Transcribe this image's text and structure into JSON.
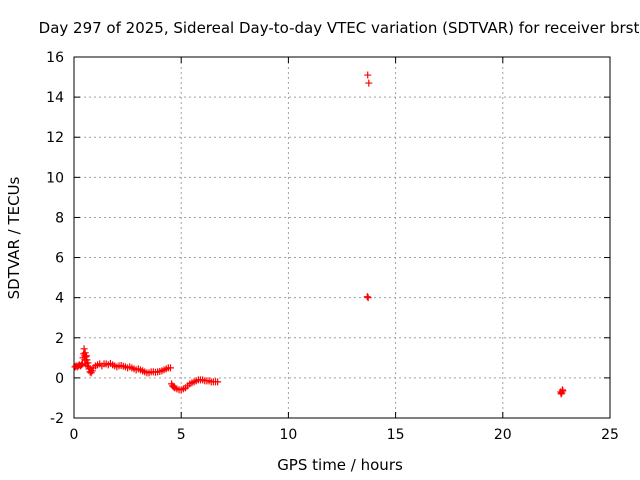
{
  "chart_data": {
    "type": "scatter",
    "title": "Day 297 of 2025, Sidereal Day-to-day VTEC variation (SDTVAR) for receiver brst",
    "xlabel": "GPS time / hours",
    "ylabel": "SDTVAR / TECUs",
    "xlim": [
      0,
      25
    ],
    "ylim": [
      -2,
      16
    ],
    "x_ticks": [
      0,
      5,
      10,
      15,
      20,
      25
    ],
    "y_ticks": [
      -2,
      0,
      2,
      4,
      6,
      8,
      10,
      12,
      14,
      16
    ],
    "x_tick_labels": [
      "0",
      "5",
      "10",
      "15",
      "20",
      "25"
    ],
    "y_tick_labels": [
      "-2",
      "0",
      "2",
      "4",
      "6",
      "8",
      "10",
      "12",
      "14",
      "16"
    ],
    "grid": true,
    "marker": "+",
    "series": [
      {
        "name": "SDTVAR",
        "color": "#ff0000",
        "x": [
          0.05,
          0.1,
          0.15,
          0.2,
          0.25,
          0.3,
          0.35,
          0.4,
          0.42,
          0.45,
          0.47,
          0.5,
          0.5,
          0.52,
          0.55,
          0.55,
          0.58,
          0.6,
          0.62,
          0.65,
          0.68,
          0.7,
          0.75,
          0.8,
          0.85,
          0.9,
          1.0,
          1.1,
          1.2,
          1.3,
          1.4,
          1.5,
          1.6,
          1.7,
          1.8,
          1.9,
          2.0,
          2.1,
          2.2,
          2.3,
          2.4,
          2.5,
          2.6,
          2.7,
          2.8,
          2.9,
          3.0,
          3.1,
          3.2,
          3.3,
          3.4,
          3.5,
          3.6,
          3.7,
          3.8,
          3.9,
          4.0,
          4.1,
          4.2,
          4.3,
          4.4,
          4.5,
          4.55,
          4.6,
          4.65,
          4.7,
          4.8,
          4.9,
          5.0,
          5.1,
          5.2,
          5.3,
          5.4,
          5.5,
          5.6,
          5.7,
          5.8,
          5.9,
          6.0,
          6.1,
          6.2,
          6.3,
          6.4,
          6.5,
          6.6,
          6.7,
          13.7,
          13.75,
          13.68,
          13.72,
          22.7,
          22.75,
          22.8,
          22.72,
          22.78
        ],
        "y": [
          0.55,
          0.6,
          0.55,
          0.6,
          0.65,
          0.6,
          0.65,
          0.7,
          1.0,
          1.2,
          1.45,
          1.1,
          0.9,
          1.25,
          1.05,
          0.7,
          1.1,
          0.9,
          0.6,
          0.75,
          0.55,
          0.45,
          0.3,
          0.25,
          0.35,
          0.5,
          0.6,
          0.65,
          0.7,
          0.6,
          0.7,
          0.7,
          0.65,
          0.72,
          0.65,
          0.6,
          0.55,
          0.6,
          0.62,
          0.58,
          0.55,
          0.5,
          0.55,
          0.5,
          0.45,
          0.4,
          0.45,
          0.4,
          0.35,
          0.3,
          0.25,
          0.25,
          0.3,
          0.3,
          0.28,
          0.3,
          0.32,
          0.35,
          0.4,
          0.45,
          0.5,
          0.5,
          -0.3,
          -0.4,
          -0.45,
          -0.5,
          -0.55,
          -0.6,
          -0.6,
          -0.55,
          -0.5,
          -0.4,
          -0.3,
          -0.25,
          -0.2,
          -0.15,
          -0.1,
          -0.1,
          -0.1,
          -0.15,
          -0.15,
          -0.15,
          -0.2,
          -0.2,
          -0.2,
          -0.2,
          15.1,
          14.7,
          4.05,
          4.0,
          -0.7,
          -0.75,
          -0.65,
          -0.8,
          -0.6
        ]
      }
    ]
  }
}
